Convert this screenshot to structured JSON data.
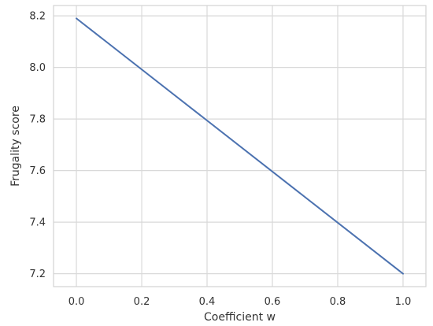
{
  "chart_data": {
    "type": "line",
    "title": "",
    "xlabel": "Coefficient w",
    "ylabel": "Frugality score",
    "xlim": [
      -0.07,
      1.07
    ],
    "ylim": [
      7.15,
      8.24
    ],
    "xticks": [
      0.0,
      0.2,
      0.4,
      0.6,
      0.8,
      1.0
    ],
    "yticks": [
      7.2,
      7.4,
      7.6,
      7.8,
      8.0,
      8.2
    ],
    "xtick_labels": [
      "0.0",
      "0.2",
      "0.4",
      "0.6",
      "0.8",
      "1.0"
    ],
    "ytick_labels": [
      "7.2",
      "7.4",
      "7.6",
      "7.8",
      "8.0",
      "8.2"
    ],
    "grid": true,
    "series": [
      {
        "color": "#4c72b0",
        "x": [
          0.0,
          1.0
        ],
        "y": [
          8.19,
          7.2
        ]
      }
    ]
  }
}
